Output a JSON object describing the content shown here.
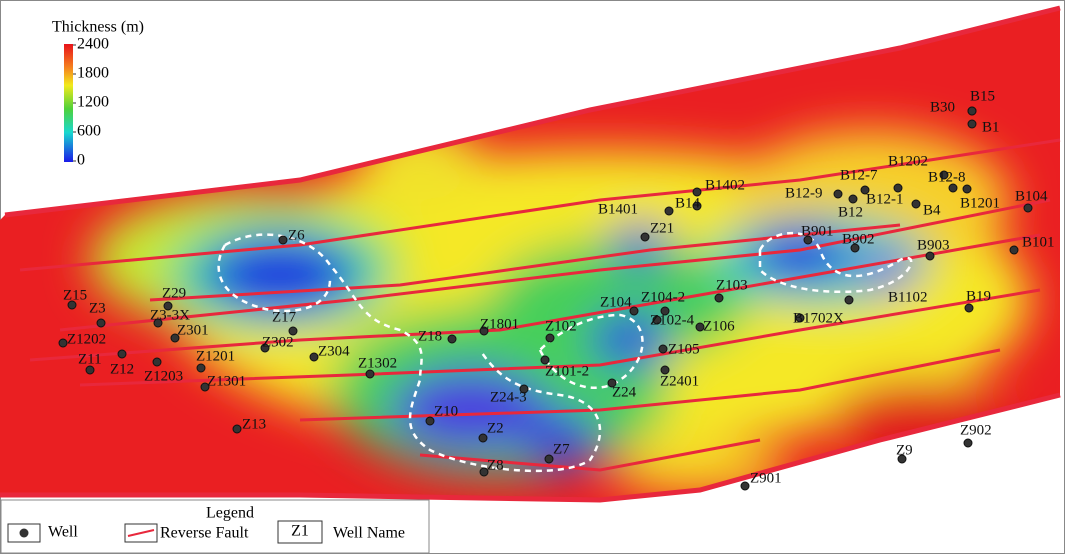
{
  "colorbar": {
    "title": "Thickness (m)",
    "range": [
      0,
      2400
    ],
    "ticks": [
      2400,
      1800,
      1200,
      600,
      0
    ]
  },
  "wells": [
    "B30",
    "B15",
    "B1",
    "B1202",
    "B12-7",
    "B12-8",
    "B12-9",
    "B12-1",
    "B12",
    "B4",
    "B1201",
    "B104",
    "B1402",
    "B1401",
    "B14",
    "Z21",
    "B901",
    "B902",
    "B903",
    "B101",
    "B1102",
    "B19",
    "B1702X",
    "Z103",
    "Z104",
    "Z104-2",
    "Z6",
    "Z15",
    "Z3",
    "Z29",
    "Z3-3X",
    "Z301",
    "Z17",
    "Z1202",
    "Z11",
    "Z12",
    "Z1201",
    "Z1203",
    "Z1301",
    "Z302",
    "Z304",
    "Z1302",
    "Z18",
    "Z1801",
    "Z102",
    "Z102-4",
    "Z106",
    "Z105",
    "Z101-2",
    "Z24",
    "Z2401",
    "Z24-3",
    "Z10",
    "Z13",
    "Z2",
    "Z8",
    "Z7",
    "Z901",
    "Z9",
    "Z902"
  ],
  "legend": {
    "title": "Legend",
    "items": [
      "Well",
      "Reverse Fault",
      "Well Name"
    ],
    "sample": "Z1"
  }
}
